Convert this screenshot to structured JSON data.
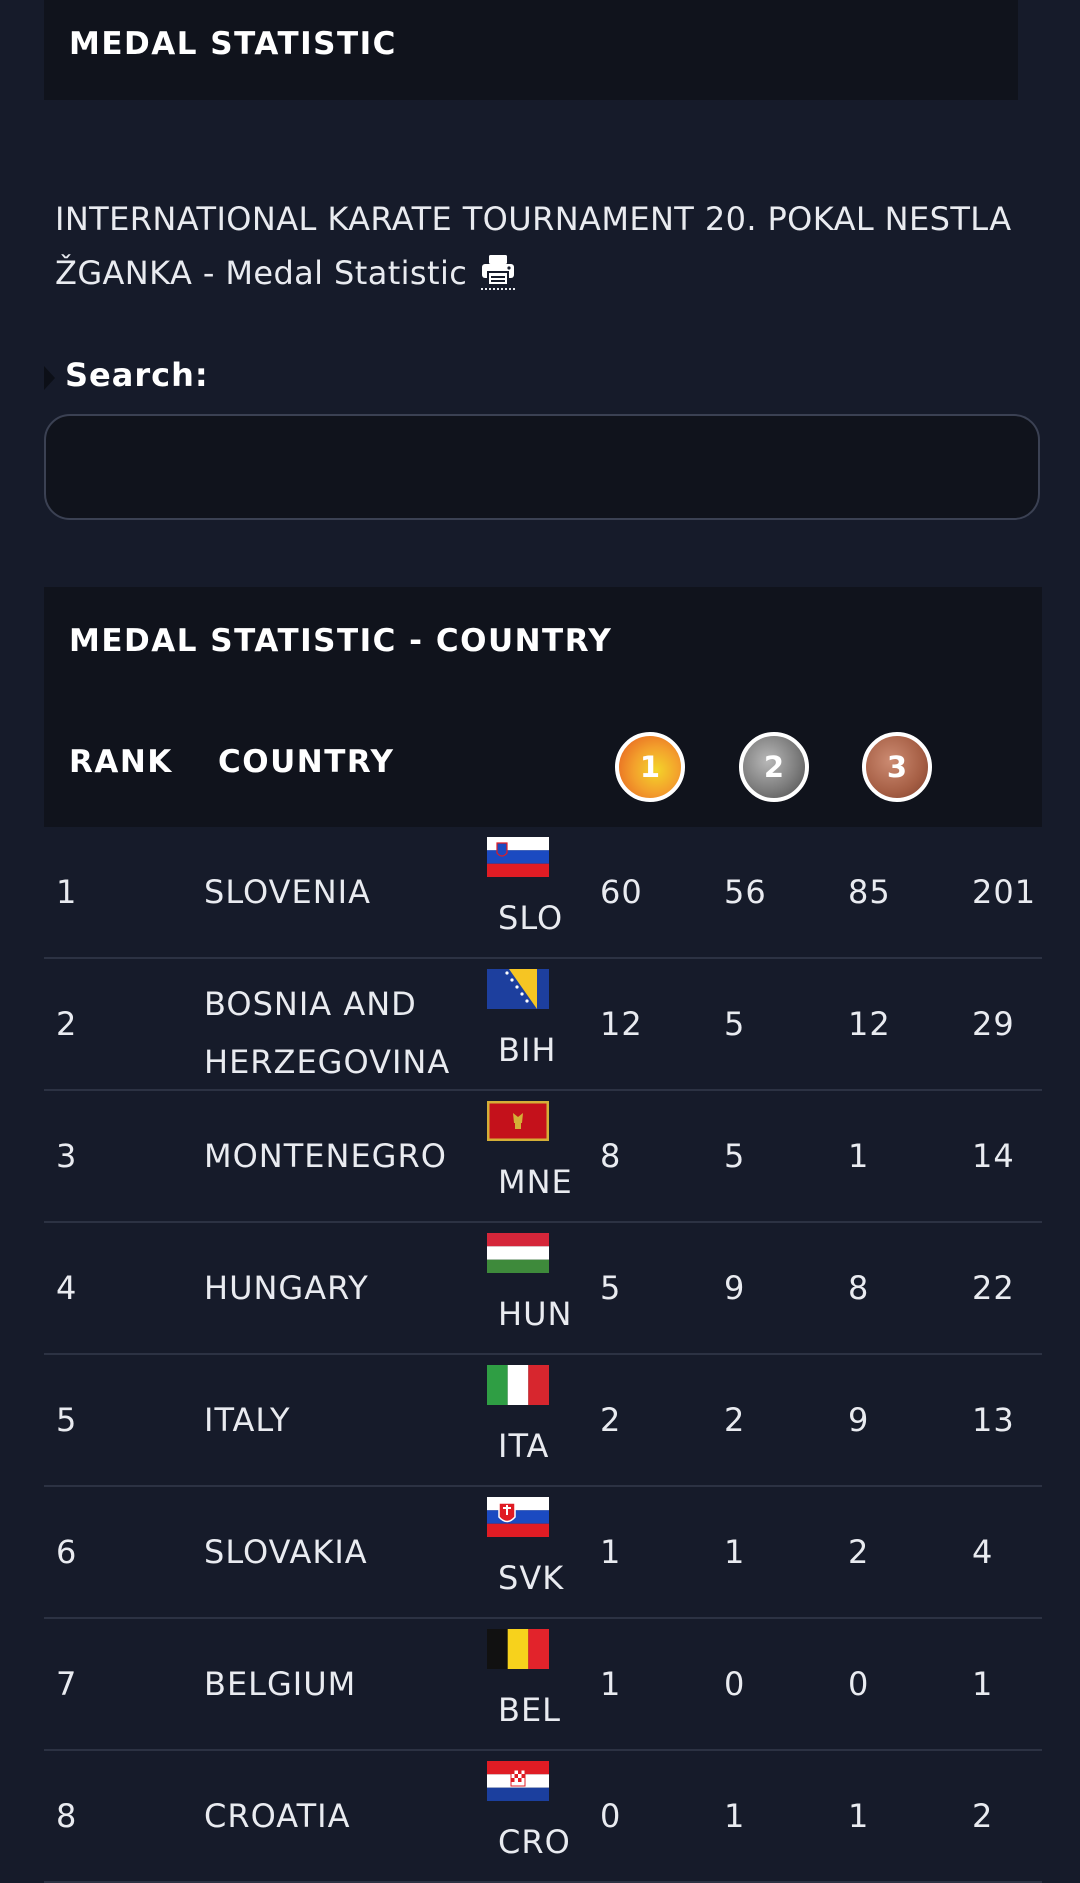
{
  "header": {
    "title": "MEDAL STATISTIC"
  },
  "event": {
    "title": "INTERNATIONAL KARATE TOURNAMENT 20. POKAL NESTLA ŽGANKA - Medal Statistic"
  },
  "search": {
    "label": "Search:",
    "value": ""
  },
  "table": {
    "title": "MEDAL STATISTIC - COUNTRY",
    "columns": {
      "rank": "RANK",
      "country": "COUNTRY",
      "gold": "1",
      "silver": "2",
      "bronze": "3"
    },
    "rows": [
      {
        "rank": "1",
        "name": "SLOVENIA",
        "code": "SLO",
        "gold": "60",
        "silver": "56",
        "bronze": "85",
        "total": "201"
      },
      {
        "rank": "2",
        "name": "BOSNIA AND HERZEGOVINA",
        "code": "BIH",
        "gold": "12",
        "silver": "5",
        "bronze": "12",
        "total": "29"
      },
      {
        "rank": "3",
        "name": "MONTENEGRO",
        "code": "MNE",
        "gold": "8",
        "silver": "5",
        "bronze": "1",
        "total": "14"
      },
      {
        "rank": "4",
        "name": "HUNGARY",
        "code": "HUN",
        "gold": "5",
        "silver": "9",
        "bronze": "8",
        "total": "22"
      },
      {
        "rank": "5",
        "name": "ITALY",
        "code": "ITA",
        "gold": "2",
        "silver": "2",
        "bronze": "9",
        "total": "13"
      },
      {
        "rank": "6",
        "name": "SLOVAKIA",
        "code": "SVK",
        "gold": "1",
        "silver": "1",
        "bronze": "2",
        "total": "4"
      },
      {
        "rank": "7",
        "name": "BELGIUM",
        "code": "BEL",
        "gold": "1",
        "silver": "0",
        "bronze": "0",
        "total": "1"
      },
      {
        "rank": "8",
        "name": "CROATIA",
        "code": "CRO",
        "gold": "0",
        "silver": "1",
        "bronze": "1",
        "total": "2"
      }
    ]
  }
}
